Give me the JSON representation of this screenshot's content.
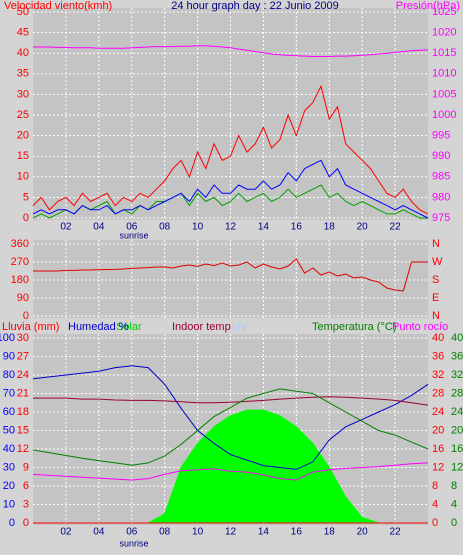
{
  "chart_data": [
    {
      "type": "line",
      "title": "24 hour graph day : 22 Junio 2009",
      "y_label": "Velocidad viento(kmh)",
      "y2_label": "Presión(hPa)",
      "sunrise": "sunrise",
      "grid": true,
      "axis_colors": {
        "y": "#ff0000",
        "y2": "#ff00ff"
      },
      "x": [
        0,
        0.5,
        1,
        1.5,
        2,
        2.5,
        3,
        3.5,
        4,
        4.5,
        5,
        5.5,
        6,
        6.5,
        7,
        7.5,
        8,
        8.5,
        9,
        9.5,
        10,
        10.5,
        11,
        11.5,
        12,
        12.5,
        13,
        13.5,
        14,
        14.5,
        15,
        15.5,
        16,
        16.5,
        17,
        17.5,
        18,
        18.5,
        19,
        19.5,
        20,
        20.5,
        21,
        21.5,
        22,
        22.5,
        23,
        23.5,
        24
      ],
      "xlim": [
        0,
        24
      ],
      "xticks": [
        {
          "value": 2,
          "label": "02"
        },
        {
          "value": 4,
          "label": "04"
        },
        {
          "value": 6,
          "label": "06"
        },
        {
          "value": 8,
          "label": "08"
        },
        10,
        12,
        14,
        16,
        18,
        20,
        22
      ],
      "ylim": [
        0,
        50
      ],
      "yticks": [
        0,
        5,
        10,
        15,
        20,
        25,
        30,
        35,
        40,
        45,
        50
      ],
      "y2lim": [
        975,
        1025
      ],
      "y2ticks": [
        975,
        980,
        985,
        990,
        995,
        1000,
        1005,
        1010,
        1015,
        1020,
        1025
      ],
      "series": [
        {
          "color": "#00a000",
          "values": [
            0,
            1,
            0,
            1,
            2,
            1,
            3,
            2,
            3,
            4,
            1,
            2,
            1,
            3,
            2,
            4,
            4,
            5,
            6,
            3,
            6,
            4,
            5,
            3,
            4,
            6,
            4,
            5,
            6,
            4,
            5,
            7,
            5,
            6,
            7,
            8,
            5,
            6,
            4,
            3,
            4,
            3,
            2,
            1,
            1,
            2,
            1,
            0,
            0
          ]
        },
        {
          "color": "#ff0000",
          "values": [
            3,
            5,
            2,
            4,
            5,
            3,
            6,
            4,
            5,
            6,
            3,
            5,
            4,
            6,
            5,
            7,
            9,
            12,
            14,
            10,
            16,
            12,
            18,
            14,
            15,
            20,
            16,
            18,
            22,
            17,
            19,
            25,
            20,
            26,
            28,
            32,
            24,
            27,
            18,
            16,
            14,
            12,
            9,
            6,
            5,
            7,
            4,
            2,
            1
          ]
        },
        {
          "color": "#0000ff",
          "values": [
            1,
            2,
            1,
            2,
            2,
            1,
            3,
            2,
            2,
            3,
            1,
            2,
            2,
            3,
            2,
            3,
            4,
            5,
            6,
            4,
            7,
            5,
            8,
            6,
            6,
            8,
            7,
            7,
            9,
            7,
            8,
            11,
            9,
            12,
            13,
            14,
            10,
            12,
            8,
            7,
            6,
            5,
            4,
            3,
            2,
            3,
            2,
            1,
            0
          ]
        },
        {
          "color": "#ff00ff",
          "axis": "y2",
          "values": [
            1016.5,
            1016.5,
            1016.5,
            1016.4,
            1016.4,
            1016.3,
            1016.3,
            1016.3,
            1016.2,
            1016.2,
            1016.2,
            1016.2,
            1016.3,
            1016.4,
            1016.5,
            1016.6,
            1016.6,
            1016.6,
            1016.7,
            1016.7,
            1016.8,
            1016.8,
            1016.7,
            1016.5,
            1016.3,
            1016.0,
            1015.7,
            1015.4,
            1015.1,
            1014.8,
            1014.6,
            1014.5,
            1014.4,
            1014.3,
            1014.2,
            1014.2,
            1014.2,
            1014.3,
            1014.3,
            1014.4,
            1014.5,
            1014.6,
            1014.8,
            1015.0,
            1015.2,
            1015.4,
            1015.6,
            1015.7,
            1015.8
          ]
        }
      ]
    },
    {
      "type": "line",
      "grid": true,
      "axis_colors": {
        "y": "#ff0000",
        "y2": "#ff0000"
      },
      "x": [
        0,
        0.5,
        1,
        1.5,
        2,
        2.5,
        3,
        3.5,
        4,
        4.5,
        5,
        5.5,
        6,
        6.5,
        7,
        7.5,
        8,
        8.5,
        9,
        9.5,
        10,
        10.5,
        11,
        11.5,
        12,
        12.5,
        13,
        13.5,
        14,
        14.5,
        15,
        15.5,
        16,
        16.5,
        17,
        17.5,
        18,
        18.5,
        19,
        19.5,
        20,
        20.5,
        21,
        21.5,
        22,
        22.5,
        23,
        23.5,
        24
      ],
      "xlim": [
        0,
        24
      ],
      "xticks": [
        {
          "value": 2,
          "label": "02"
        },
        {
          "value": 4,
          "label": "04"
        },
        {
          "value": 6,
          "label": "06"
        },
        {
          "value": 8,
          "label": "08"
        },
        10,
        12,
        14,
        16,
        18,
        20,
        22
      ],
      "ylim": [
        0,
        360
      ],
      "yticks": [
        0,
        90,
        180,
        270,
        360
      ],
      "y2lim": [
        0,
        360
      ],
      "y2ticks": [
        {
          "value": 0,
          "label": "N"
        },
        {
          "value": 90,
          "label": "E"
        },
        {
          "value": 180,
          "label": "S"
        },
        {
          "value": 270,
          "label": "W"
        },
        {
          "value": 360,
          "label": "N"
        }
      ],
      "series": [
        {
          "color": "#dd0000",
          "values": [
            225,
            225,
            225,
            225,
            228,
            228,
            230,
            230,
            232,
            232,
            233,
            235,
            238,
            240,
            242,
            245,
            245,
            240,
            250,
            255,
            248,
            260,
            252,
            265,
            250,
            255,
            270,
            240,
            260,
            245,
            235,
            250,
            285,
            215,
            240,
            205,
            220,
            200,
            210,
            190,
            195,
            180,
            170,
            140,
            130,
            125,
            270,
            270,
            270
          ]
        }
      ]
    },
    {
      "type": "line",
      "sunrise": "sunrise",
      "grid": true,
      "uv_label": "UV",
      "axis_colors": {
        "y": "#ff0000",
        "y3": "#0000ff",
        "y2": "#ff0000",
        "y4": "#008000"
      },
      "x": [
        0,
        1,
        2,
        3,
        4,
        5,
        6,
        7,
        8,
        9,
        10,
        11,
        12,
        13,
        14,
        15,
        16,
        17,
        18,
        19,
        20,
        21,
        22,
        23,
        24
      ],
      "xlim": [
        0,
        24
      ],
      "xticks": [
        {
          "value": 2,
          "label": "02"
        },
        {
          "value": 4,
          "label": "04"
        },
        {
          "value": 6,
          "label": "06"
        },
        {
          "value": 8,
          "label": "08"
        },
        10,
        12,
        14,
        16,
        18,
        20,
        22
      ],
      "ylim": [
        0,
        30
      ],
      "yticks": [
        0,
        3,
        6,
        9,
        12,
        15,
        18,
        21,
        24,
        27,
        30
      ],
      "y3lim": [
        0,
        100
      ],
      "y3ticks": [
        0,
        10,
        20,
        30,
        40,
        50,
        60,
        70,
        80,
        90,
        100
      ],
      "y2lim": [
        0,
        40
      ],
      "y2ticks": [
        0,
        4,
        8,
        12,
        16,
        20,
        24,
        28,
        32,
        36,
        40
      ],
      "y4lim": [
        0,
        40
      ],
      "y4ticks": [
        0,
        4,
        8,
        12,
        16,
        20,
        24,
        28,
        32,
        36,
        40
      ],
      "series": [
        {
          "name": "Solar",
          "color": "#00ff00",
          "axis": "y3",
          "area": true,
          "values": [
            0,
            0,
            0,
            0,
            0,
            0,
            0,
            0,
            5,
            30,
            43,
            52,
            58,
            61,
            61,
            58,
            52,
            43,
            30,
            14,
            3,
            0,
            0,
            0,
            0
          ]
        },
        {
          "name": "Lluvia (mm)",
          "color": "#ff0000",
          "values": [
            0,
            0,
            0,
            0,
            0,
            0,
            0,
            0,
            0,
            0,
            0,
            0,
            0,
            0,
            0,
            0,
            0,
            0,
            0,
            0,
            0,
            0,
            0,
            0,
            0
          ]
        },
        {
          "name": "Humedad %",
          "color": "#0000cc",
          "axis": "y3",
          "values": [
            78,
            79,
            80,
            81,
            82,
            84,
            85,
            84,
            75,
            62,
            50,
            43,
            37,
            34,
            31,
            30,
            29,
            33,
            45,
            52,
            56,
            60,
            64,
            69,
            75
          ]
        },
        {
          "name": "Indoor temp",
          "color": "#990033",
          "axis": "y2",
          "values": [
            27,
            27,
            27,
            26.8,
            26.8,
            26.6,
            26.5,
            26.5,
            26.4,
            26.2,
            26,
            26,
            26.1,
            26.3,
            26.5,
            26.8,
            27,
            27.2,
            27.3,
            27.2,
            27,
            26.8,
            26.5,
            26,
            25.5
          ]
        },
        {
          "name": "Temperatura (°C)",
          "color": "#008000",
          "axis": "y2",
          "values": [
            15.8,
            15.2,
            14.6,
            14,
            13.5,
            13,
            12.5,
            13,
            14.5,
            17,
            20,
            23,
            25,
            27,
            28,
            29,
            28.5,
            28,
            26,
            24,
            22,
            20,
            19,
            17.5,
            16
          ]
        },
        {
          "name": "Punto rocío",
          "color": "#ff00ff",
          "axis": "y2",
          "values": [
            10.5,
            10.3,
            10.1,
            9.9,
            9.7,
            9.5,
            9.3,
            9.6,
            10.5,
            11.3,
            11.5,
            11.7,
            11.2,
            11,
            10.4,
            9.6,
            9.3,
            11,
            11.5,
            11.8,
            12,
            12.2,
            12.5,
            12.8,
            13
          ]
        }
      ]
    }
  ]
}
